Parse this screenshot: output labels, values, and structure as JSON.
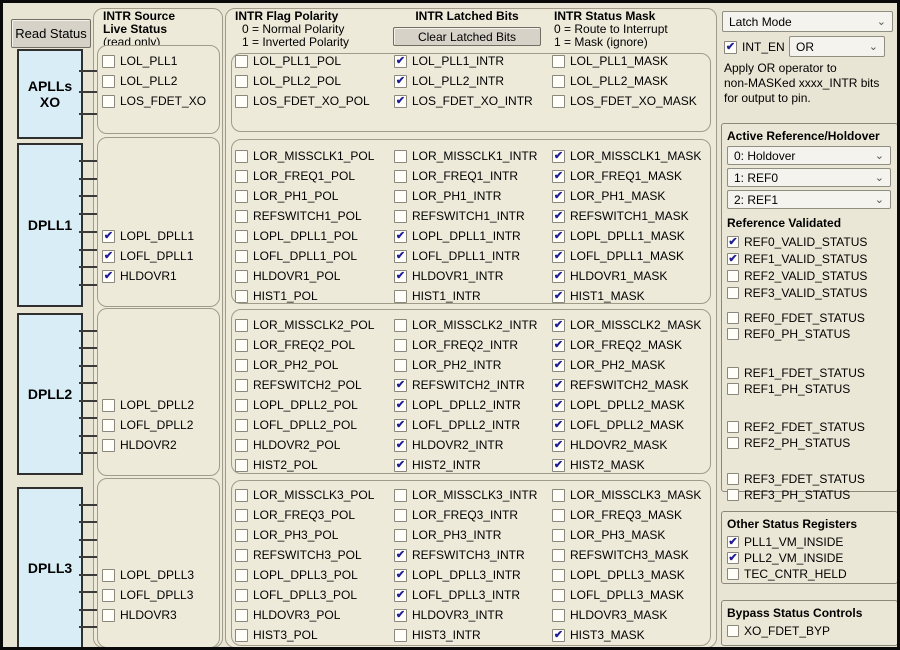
{
  "buttons": {
    "read_status": "Read Status",
    "clear_latched": "Clear Latched Bits"
  },
  "headers": {
    "source": {
      "line1": "INTR Source",
      "line2": "Live Status",
      "line3": "(read only)"
    },
    "polarity": {
      "title": "INTR Flag Polarity",
      "line1": "0 = Normal Polarity",
      "line2": "1 = Inverted Polarity"
    },
    "latched": {
      "title": "INTR Latched Bits"
    },
    "mask": {
      "title": "INTR Status Mask",
      "line1": "0 = Route to Interrupt",
      "line2": "1 = Mask (ignore)"
    }
  },
  "bands": [
    {
      "block": "APLLs\nXO",
      "live": [
        {
          "label": "LOL_PLL1",
          "checked": false
        },
        {
          "label": "LOL_PLL2",
          "checked": false
        },
        {
          "label": "LOS_FDET_XO",
          "checked": false
        }
      ],
      "pol": [
        {
          "label": "LOL_PLL1_POL",
          "checked": false
        },
        {
          "label": "LOL_PLL2_POL",
          "checked": false
        },
        {
          "label": "LOS_FDET_XO_POL",
          "checked": false
        }
      ],
      "intr": [
        {
          "label": "LOL_PLL1_INTR",
          "checked": true
        },
        {
          "label": "LOL_PLL2_INTR",
          "checked": true
        },
        {
          "label": "LOS_FDET_XO_INTR",
          "checked": true
        }
      ],
      "mask": [
        {
          "label": "LOL_PLL1_MASK",
          "checked": false
        },
        {
          "label": "LOL_PLL2_MASK",
          "checked": false
        },
        {
          "label": "LOS_FDET_XO_MASK",
          "checked": false
        }
      ]
    },
    {
      "block": "DPLL1",
      "live": [
        {
          "label": "LOPL_DPLL1",
          "checked": true
        },
        {
          "label": "LOFL_DPLL1",
          "checked": true
        },
        {
          "label": "HLDOVR1",
          "checked": true
        }
      ],
      "pol": [
        {
          "label": "LOR_MISSCLK1_POL",
          "checked": false
        },
        {
          "label": "LOR_FREQ1_POL",
          "checked": false
        },
        {
          "label": "LOR_PH1_POL",
          "checked": false
        },
        {
          "label": "REFSWITCH1_POL",
          "checked": false
        },
        {
          "label": "LOPL_DPLL1_POL",
          "checked": false
        },
        {
          "label": "LOFL_DPLL1_POL",
          "checked": false
        },
        {
          "label": "HLDOVR1_POL",
          "checked": false
        },
        {
          "label": "HIST1_POL",
          "checked": false
        }
      ],
      "intr": [
        {
          "label": "LOR_MISSCLK1_INTR",
          "checked": false
        },
        {
          "label": "LOR_FREQ1_INTR",
          "checked": false
        },
        {
          "label": "LOR_PH1_INTR",
          "checked": false
        },
        {
          "label": "REFSWITCH1_INTR",
          "checked": false
        },
        {
          "label": "LOPL_DPLL1_INTR",
          "checked": true
        },
        {
          "label": "LOFL_DPLL1_INTR",
          "checked": true
        },
        {
          "label": "HLDOVR1_INTR",
          "checked": true
        },
        {
          "label": "HIST1_INTR",
          "checked": false
        }
      ],
      "mask": [
        {
          "label": "LOR_MISSCLK1_MASK",
          "checked": true
        },
        {
          "label": "LOR_FREQ1_MASK",
          "checked": true
        },
        {
          "label": "LOR_PH1_MASK",
          "checked": true
        },
        {
          "label": "REFSWITCH1_MASK",
          "checked": true
        },
        {
          "label": "LOPL_DPLL1_MASK",
          "checked": true
        },
        {
          "label": "LOFL_DPLL1_MASK",
          "checked": true
        },
        {
          "label": "HLDOVR1_MASK",
          "checked": true
        },
        {
          "label": "HIST1_MASK",
          "checked": true
        }
      ]
    },
    {
      "block": "DPLL2",
      "live": [
        {
          "label": "LOPL_DPLL2",
          "checked": false
        },
        {
          "label": "LOFL_DPLL2",
          "checked": false
        },
        {
          "label": "HLDOVR2",
          "checked": false
        }
      ],
      "pol": [
        {
          "label": "LOR_MISSCLK2_POL",
          "checked": false
        },
        {
          "label": "LOR_FREQ2_POL",
          "checked": false
        },
        {
          "label": "LOR_PH2_POL",
          "checked": false
        },
        {
          "label": "REFSWITCH2_POL",
          "checked": false
        },
        {
          "label": "LOPL_DPLL2_POL",
          "checked": false
        },
        {
          "label": "LOFL_DPLL2_POL",
          "checked": false
        },
        {
          "label": "HLDOVR2_POL",
          "checked": false
        },
        {
          "label": "HIST2_POL",
          "checked": false
        }
      ],
      "intr": [
        {
          "label": "LOR_MISSCLK2_INTR",
          "checked": false
        },
        {
          "label": "LOR_FREQ2_INTR",
          "checked": false
        },
        {
          "label": "LOR_PH2_INTR",
          "checked": false
        },
        {
          "label": "REFSWITCH2_INTR",
          "checked": true
        },
        {
          "label": "LOPL_DPLL2_INTR",
          "checked": true
        },
        {
          "label": "LOFL_DPLL2_INTR",
          "checked": true
        },
        {
          "label": "HLDOVR2_INTR",
          "checked": true
        },
        {
          "label": "HIST2_INTR",
          "checked": true
        }
      ],
      "mask": [
        {
          "label": "LOR_MISSCLK2_MASK",
          "checked": true
        },
        {
          "label": "LOR_FREQ2_MASK",
          "checked": true
        },
        {
          "label": "LOR_PH2_MASK",
          "checked": true
        },
        {
          "label": "REFSWITCH2_MASK",
          "checked": true
        },
        {
          "label": "LOPL_DPLL2_MASK",
          "checked": true
        },
        {
          "label": "LOFL_DPLL2_MASK",
          "checked": true
        },
        {
          "label": "HLDOVR2_MASK",
          "checked": true
        },
        {
          "label": "HIST2_MASK",
          "checked": true
        }
      ]
    },
    {
      "block": "DPLL3",
      "live": [
        {
          "label": "LOPL_DPLL3",
          "checked": false
        },
        {
          "label": "LOFL_DPLL3",
          "checked": false
        },
        {
          "label": "HLDOVR3",
          "checked": false
        }
      ],
      "pol": [
        {
          "label": "LOR_MISSCLK3_POL",
          "checked": false
        },
        {
          "label": "LOR_FREQ3_POL",
          "checked": false
        },
        {
          "label": "LOR_PH3_POL",
          "checked": false
        },
        {
          "label": "REFSWITCH3_POL",
          "checked": false
        },
        {
          "label": "LOPL_DPLL3_POL",
          "checked": false
        },
        {
          "label": "LOFL_DPLL3_POL",
          "checked": false
        },
        {
          "label": "HLDOVR3_POL",
          "checked": false
        },
        {
          "label": "HIST3_POL",
          "checked": false
        }
      ],
      "intr": [
        {
          "label": "LOR_MISSCLK3_INTR",
          "checked": false
        },
        {
          "label": "LOR_FREQ3_INTR",
          "checked": false
        },
        {
          "label": "LOR_PH3_INTR",
          "checked": false
        },
        {
          "label": "REFSWITCH3_INTR",
          "checked": true
        },
        {
          "label": "LOPL_DPLL3_INTR",
          "checked": true
        },
        {
          "label": "LOFL_DPLL3_INTR",
          "checked": true
        },
        {
          "label": "HLDOVR3_INTR",
          "checked": true
        },
        {
          "label": "HIST3_INTR",
          "checked": false
        }
      ],
      "mask": [
        {
          "label": "LOR_MISSCLK3_MASK",
          "checked": false
        },
        {
          "label": "LOR_FREQ3_MASK",
          "checked": false
        },
        {
          "label": "LOR_PH3_MASK",
          "checked": false
        },
        {
          "label": "REFSWITCH3_MASK",
          "checked": false
        },
        {
          "label": "LOPL_DPLL3_MASK",
          "checked": false
        },
        {
          "label": "LOFL_DPLL3_MASK",
          "checked": false
        },
        {
          "label": "HLDOVR3_MASK",
          "checked": false
        },
        {
          "label": "HIST3_MASK",
          "checked": true
        }
      ]
    }
  ],
  "right_panel": {
    "latch_mode": "Latch Mode",
    "or_select": "OR",
    "int_en_rows": [
      {
        "label": "INT_EN",
        "checked": true
      }
    ],
    "apply_note": [
      "Apply OR operator to",
      "non-MASKed xxxx_INTR bits",
      "for output to pin."
    ],
    "active_ref": {
      "title": "Active Reference/Holdover",
      "selects": [
        "0: Holdover",
        "1: REF0",
        "2: REF1"
      ],
      "validated_title": "Reference Validated",
      "validated": [
        {
          "label": "REF0_VALID_STATUS",
          "checked": true
        },
        {
          "label": "REF1_VALID_STATUS",
          "checked": true
        },
        {
          "label": "REF2_VALID_STATUS",
          "checked": false
        },
        {
          "label": "REF3_VALID_STATUS",
          "checked": false
        }
      ],
      "ref_groups": [
        [
          {
            "label": "REF0_FDET_STATUS",
            "checked": false
          },
          {
            "label": "REF0_PH_STATUS",
            "checked": false
          }
        ],
        [
          {
            "label": "REF1_FDET_STATUS",
            "checked": false
          },
          {
            "label": "REF1_PH_STATUS",
            "checked": false
          }
        ],
        [
          {
            "label": "REF2_FDET_STATUS",
            "checked": false
          },
          {
            "label": "REF2_PH_STATUS",
            "checked": false
          }
        ],
        [
          {
            "label": "REF3_FDET_STATUS",
            "checked": false
          },
          {
            "label": "REF3_PH_STATUS",
            "checked": false
          }
        ]
      ]
    },
    "other_status": {
      "title": "Other Status Registers",
      "items": [
        {
          "label": "PLL1_VM_INSIDE",
          "checked": true
        },
        {
          "label": "PLL2_VM_INSIDE",
          "checked": true
        },
        {
          "label": "TEC_CNTR_HELD",
          "checked": false
        }
      ]
    },
    "bypass": {
      "title": "Bypass Status Controls",
      "items": [
        {
          "label": "XO_FDET_BYP",
          "checked": false
        }
      ]
    }
  },
  "colors": {
    "accent_check": "#1e1e96",
    "block_fill": "#d8edf6",
    "panel_bg": "#e9e5d4"
  }
}
